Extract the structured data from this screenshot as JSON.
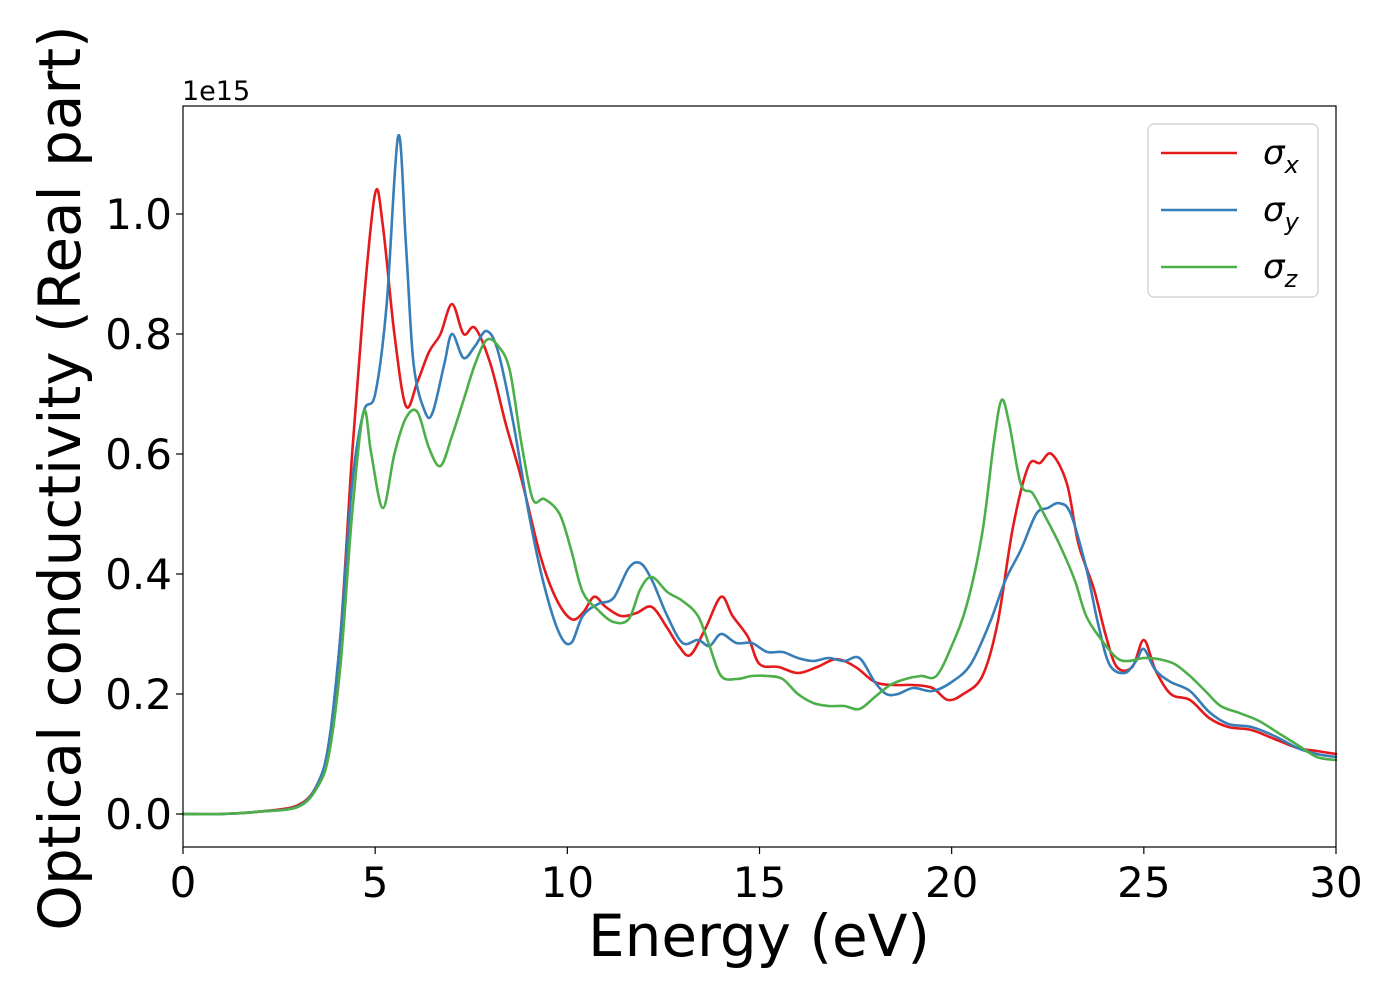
{
  "chart_data": {
    "type": "line",
    "title": "",
    "xlabel": "Energy (eV)",
    "ylabel": "Optical conductivity (Real part)",
    "offset_label": "1e15",
    "xlim": [
      0,
      30
    ],
    "ylim": [
      -0.055,
      1.18
    ],
    "x_ticks": [
      0,
      5,
      10,
      15,
      20,
      25,
      30
    ],
    "x_tick_labels": [
      "0",
      "5",
      "10",
      "15",
      "20",
      "25",
      "30"
    ],
    "y_ticks": [
      0.0,
      0.2,
      0.4,
      0.6,
      0.8,
      1.0
    ],
    "y_tick_labels": [
      "0.0",
      "0.2",
      "0.4",
      "0.6",
      "0.8",
      "1.0"
    ],
    "grid": false,
    "legend_position": "top-right",
    "series": [
      {
        "name": "σx",
        "symbol": "σ",
        "subscript": "x",
        "color": "#e41a1c",
        "points": [
          [
            0,
            0.0
          ],
          [
            1,
            0.0
          ],
          [
            2,
            0.004
          ],
          [
            3,
            0.015
          ],
          [
            3.5,
            0.05
          ],
          [
            3.8,
            0.12
          ],
          [
            4.1,
            0.3
          ],
          [
            4.4,
            0.6
          ],
          [
            4.7,
            0.85
          ],
          [
            5.0,
            1.035
          ],
          [
            5.2,
            0.98
          ],
          [
            5.5,
            0.8
          ],
          [
            5.8,
            0.68
          ],
          [
            6.1,
            0.72
          ],
          [
            6.4,
            0.77
          ],
          [
            6.7,
            0.8
          ],
          [
            7.0,
            0.85
          ],
          [
            7.3,
            0.8
          ],
          [
            7.6,
            0.81
          ],
          [
            8.0,
            0.75
          ],
          [
            8.4,
            0.65
          ],
          [
            8.8,
            0.56
          ],
          [
            9.3,
            0.43
          ],
          [
            9.7,
            0.36
          ],
          [
            10.1,
            0.325
          ],
          [
            10.4,
            0.335
          ],
          [
            10.7,
            0.362
          ],
          [
            11.0,
            0.345
          ],
          [
            11.4,
            0.33
          ],
          [
            11.8,
            0.335
          ],
          [
            12.2,
            0.345
          ],
          [
            12.6,
            0.31
          ],
          [
            12.9,
            0.28
          ],
          [
            13.2,
            0.265
          ],
          [
            13.6,
            0.31
          ],
          [
            14.0,
            0.362
          ],
          [
            14.3,
            0.33
          ],
          [
            14.7,
            0.295
          ],
          [
            15.0,
            0.25
          ],
          [
            15.5,
            0.245
          ],
          [
            16.0,
            0.235
          ],
          [
            16.5,
            0.245
          ],
          [
            17.0,
            0.258
          ],
          [
            17.5,
            0.245
          ],
          [
            18.0,
            0.22
          ],
          [
            18.5,
            0.215
          ],
          [
            19.0,
            0.215
          ],
          [
            19.5,
            0.21
          ],
          [
            19.9,
            0.19
          ],
          [
            20.3,
            0.2
          ],
          [
            20.8,
            0.23
          ],
          [
            21.2,
            0.32
          ],
          [
            21.6,
            0.48
          ],
          [
            22.0,
            0.58
          ],
          [
            22.3,
            0.585
          ],
          [
            22.6,
            0.6
          ],
          [
            23.0,
            0.55
          ],
          [
            23.3,
            0.45
          ],
          [
            23.7,
            0.375
          ],
          [
            24.0,
            0.3
          ],
          [
            24.3,
            0.245
          ],
          [
            24.7,
            0.245
          ],
          [
            25.0,
            0.29
          ],
          [
            25.3,
            0.24
          ],
          [
            25.7,
            0.2
          ],
          [
            26.2,
            0.19
          ],
          [
            26.7,
            0.16
          ],
          [
            27.2,
            0.145
          ],
          [
            27.8,
            0.14
          ],
          [
            28.4,
            0.125
          ],
          [
            29.0,
            0.11
          ],
          [
            29.5,
            0.105
          ],
          [
            30.0,
            0.1
          ]
        ]
      },
      {
        "name": "σy",
        "symbol": "σ",
        "subscript": "y",
        "color": "#377eb8",
        "points": [
          [
            0,
            0.0
          ],
          [
            1,
            0.0
          ],
          [
            2,
            0.004
          ],
          [
            3,
            0.013
          ],
          [
            3.5,
            0.05
          ],
          [
            3.8,
            0.12
          ],
          [
            4.1,
            0.3
          ],
          [
            4.4,
            0.55
          ],
          [
            4.7,
            0.67
          ],
          [
            5.0,
            0.7
          ],
          [
            5.3,
            0.85
          ],
          [
            5.6,
            1.13
          ],
          [
            5.8,
            0.95
          ],
          [
            6.0,
            0.75
          ],
          [
            6.3,
            0.67
          ],
          [
            6.5,
            0.67
          ],
          [
            6.8,
            0.75
          ],
          [
            7.0,
            0.8
          ],
          [
            7.3,
            0.76
          ],
          [
            7.6,
            0.78
          ],
          [
            7.9,
            0.805
          ],
          [
            8.2,
            0.77
          ],
          [
            8.6,
            0.65
          ],
          [
            9.0,
            0.5
          ],
          [
            9.4,
            0.38
          ],
          [
            9.8,
            0.3
          ],
          [
            10.1,
            0.285
          ],
          [
            10.4,
            0.33
          ],
          [
            10.8,
            0.35
          ],
          [
            11.2,
            0.36
          ],
          [
            11.6,
            0.41
          ],
          [
            11.9,
            0.418
          ],
          [
            12.2,
            0.39
          ],
          [
            12.6,
            0.33
          ],
          [
            13.0,
            0.285
          ],
          [
            13.4,
            0.29
          ],
          [
            13.7,
            0.28
          ],
          [
            14.0,
            0.3
          ],
          [
            14.4,
            0.285
          ],
          [
            14.8,
            0.285
          ],
          [
            15.2,
            0.27
          ],
          [
            15.6,
            0.27
          ],
          [
            16.0,
            0.26
          ],
          [
            16.4,
            0.255
          ],
          [
            16.8,
            0.26
          ],
          [
            17.2,
            0.255
          ],
          [
            17.6,
            0.26
          ],
          [
            18.0,
            0.22
          ],
          [
            18.3,
            0.2
          ],
          [
            18.6,
            0.2
          ],
          [
            19.0,
            0.21
          ],
          [
            19.5,
            0.205
          ],
          [
            20.0,
            0.22
          ],
          [
            20.5,
            0.25
          ],
          [
            21.0,
            0.32
          ],
          [
            21.4,
            0.39
          ],
          [
            21.8,
            0.44
          ],
          [
            22.2,
            0.5
          ],
          [
            22.5,
            0.51
          ],
          [
            22.8,
            0.518
          ],
          [
            23.1,
            0.5
          ],
          [
            23.5,
            0.41
          ],
          [
            23.8,
            0.32
          ],
          [
            24.1,
            0.25
          ],
          [
            24.5,
            0.235
          ],
          [
            24.8,
            0.255
          ],
          [
            25.0,
            0.275
          ],
          [
            25.3,
            0.24
          ],
          [
            25.7,
            0.22
          ],
          [
            26.2,
            0.205
          ],
          [
            26.7,
            0.17
          ],
          [
            27.2,
            0.15
          ],
          [
            27.8,
            0.145
          ],
          [
            28.4,
            0.13
          ],
          [
            29.0,
            0.11
          ],
          [
            29.5,
            0.1
          ],
          [
            30.0,
            0.095
          ]
        ]
      },
      {
        "name": "σz",
        "symbol": "σ",
        "subscript": "z",
        "color": "#4daf4a",
        "points": [
          [
            0,
            0.0
          ],
          [
            1,
            0.0
          ],
          [
            2,
            0.004
          ],
          [
            3,
            0.012
          ],
          [
            3.5,
            0.045
          ],
          [
            3.8,
            0.1
          ],
          [
            4.1,
            0.25
          ],
          [
            4.4,
            0.5
          ],
          [
            4.7,
            0.67
          ],
          [
            4.9,
            0.6
          ],
          [
            5.2,
            0.51
          ],
          [
            5.5,
            0.6
          ],
          [
            5.8,
            0.66
          ],
          [
            6.1,
            0.67
          ],
          [
            6.4,
            0.61
          ],
          [
            6.7,
            0.58
          ],
          [
            7.0,
            0.63
          ],
          [
            7.3,
            0.69
          ],
          [
            7.6,
            0.75
          ],
          [
            7.9,
            0.79
          ],
          [
            8.2,
            0.78
          ],
          [
            8.5,
            0.74
          ],
          [
            8.8,
            0.62
          ],
          [
            9.1,
            0.525
          ],
          [
            9.4,
            0.525
          ],
          [
            9.8,
            0.5
          ],
          [
            10.1,
            0.44
          ],
          [
            10.4,
            0.37
          ],
          [
            10.8,
            0.34
          ],
          [
            11.2,
            0.32
          ],
          [
            11.6,
            0.325
          ],
          [
            11.9,
            0.375
          ],
          [
            12.2,
            0.395
          ],
          [
            12.6,
            0.37
          ],
          [
            13.0,
            0.355
          ],
          [
            13.4,
            0.33
          ],
          [
            13.7,
            0.28
          ],
          [
            14.0,
            0.23
          ],
          [
            14.4,
            0.225
          ],
          [
            14.8,
            0.23
          ],
          [
            15.2,
            0.23
          ],
          [
            15.6,
            0.225
          ],
          [
            16.0,
            0.2
          ],
          [
            16.4,
            0.185
          ],
          [
            16.8,
            0.18
          ],
          [
            17.2,
            0.18
          ],
          [
            17.6,
            0.175
          ],
          [
            18.0,
            0.195
          ],
          [
            18.4,
            0.215
          ],
          [
            18.8,
            0.225
          ],
          [
            19.2,
            0.23
          ],
          [
            19.6,
            0.23
          ],
          [
            20.0,
            0.28
          ],
          [
            20.4,
            0.35
          ],
          [
            20.8,
            0.47
          ],
          [
            21.1,
            0.62
          ],
          [
            21.3,
            0.69
          ],
          [
            21.5,
            0.65
          ],
          [
            21.8,
            0.55
          ],
          [
            22.1,
            0.535
          ],
          [
            22.4,
            0.5
          ],
          [
            22.8,
            0.45
          ],
          [
            23.2,
            0.39
          ],
          [
            23.5,
            0.33
          ],
          [
            23.9,
            0.29
          ],
          [
            24.3,
            0.26
          ],
          [
            24.6,
            0.255
          ],
          [
            25.0,
            0.26
          ],
          [
            25.4,
            0.258
          ],
          [
            25.8,
            0.25
          ],
          [
            26.2,
            0.23
          ],
          [
            26.6,
            0.205
          ],
          [
            27.0,
            0.18
          ],
          [
            27.5,
            0.168
          ],
          [
            28.0,
            0.155
          ],
          [
            28.5,
            0.135
          ],
          [
            29.0,
            0.115
          ],
          [
            29.5,
            0.095
          ],
          [
            30.0,
            0.09
          ]
        ]
      }
    ]
  }
}
